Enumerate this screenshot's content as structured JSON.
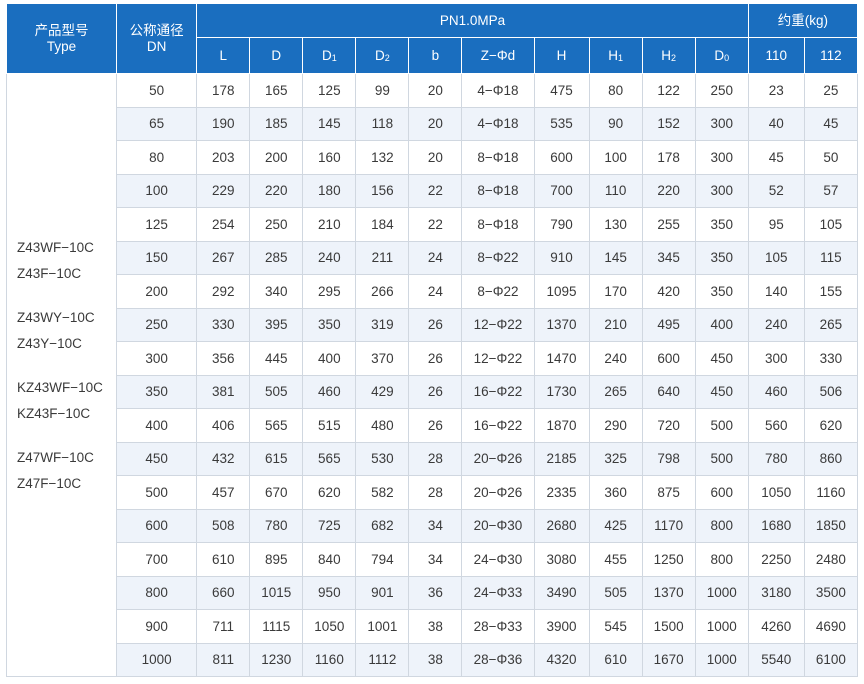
{
  "header": {
    "type_label_cn": "产品型号",
    "type_label_en": "Type",
    "dn_label_cn": "公称通径",
    "dn_label_en": "DN",
    "pressure_label": "PN1.0MPa",
    "weight_label": "约重(kg)",
    "dims": [
      {
        "main": "L",
        "sub": ""
      },
      {
        "main": "D",
        "sub": ""
      },
      {
        "main": "D",
        "sub": "1"
      },
      {
        "main": "D",
        "sub": "2"
      },
      {
        "main": "b",
        "sub": ""
      },
      {
        "main": "Z−Φd",
        "sub": ""
      },
      {
        "main": "H",
        "sub": ""
      },
      {
        "main": "H",
        "sub": "1"
      },
      {
        "main": "H",
        "sub": "2"
      },
      {
        "main": "D",
        "sub": "0"
      }
    ],
    "weight_cols": [
      "110",
      "112"
    ]
  },
  "types": [
    [
      "Z43WF−10C",
      "Z43F−10C"
    ],
    [
      "Z43WY−10C",
      "Z43Y−10C"
    ],
    [
      "KZ43WF−10C",
      "KZ43F−10C"
    ],
    [
      "Z47WF−10C",
      "Z47F−10C"
    ]
  ],
  "rows": [
    [
      "50",
      "178",
      "165",
      "125",
      "99",
      "20",
      "4−Φ18",
      "475",
      "80",
      "122",
      "250",
      "23",
      "25"
    ],
    [
      "65",
      "190",
      "185",
      "145",
      "118",
      "20",
      "4−Φ18",
      "535",
      "90",
      "152",
      "300",
      "40",
      "45"
    ],
    [
      "80",
      "203",
      "200",
      "160",
      "132",
      "20",
      "8−Φ18",
      "600",
      "100",
      "178",
      "300",
      "45",
      "50"
    ],
    [
      "100",
      "229",
      "220",
      "180",
      "156",
      "22",
      "8−Φ18",
      "700",
      "110",
      "220",
      "300",
      "52",
      "57"
    ],
    [
      "125",
      "254",
      "250",
      "210",
      "184",
      "22",
      "8−Φ18",
      "790",
      "130",
      "255",
      "350",
      "95",
      "105"
    ],
    [
      "150",
      "267",
      "285",
      "240",
      "211",
      "24",
      "8−Φ22",
      "910",
      "145",
      "345",
      "350",
      "105",
      "115"
    ],
    [
      "200",
      "292",
      "340",
      "295",
      "266",
      "24",
      "8−Φ22",
      "1095",
      "170",
      "420",
      "350",
      "140",
      "155"
    ],
    [
      "250",
      "330",
      "395",
      "350",
      "319",
      "26",
      "12−Φ22",
      "1370",
      "210",
      "495",
      "400",
      "240",
      "265"
    ],
    [
      "300",
      "356",
      "445",
      "400",
      "370",
      "26",
      "12−Φ22",
      "1470",
      "240",
      "600",
      "450",
      "300",
      "330"
    ],
    [
      "350",
      "381",
      "505",
      "460",
      "429",
      "26",
      "16−Φ22",
      "1730",
      "265",
      "640",
      "450",
      "460",
      "506"
    ],
    [
      "400",
      "406",
      "565",
      "515",
      "480",
      "26",
      "16−Φ22",
      "1870",
      "290",
      "720",
      "500",
      "560",
      "620"
    ],
    [
      "450",
      "432",
      "615",
      "565",
      "530",
      "28",
      "20−Φ26",
      "2185",
      "325",
      "798",
      "500",
      "780",
      "860"
    ],
    [
      "500",
      "457",
      "670",
      "620",
      "582",
      "28",
      "20−Φ26",
      "2335",
      "360",
      "875",
      "600",
      "1050",
      "1160"
    ],
    [
      "600",
      "508",
      "780",
      "725",
      "682",
      "34",
      "20−Φ30",
      "2680",
      "425",
      "1170",
      "800",
      "1680",
      "1850"
    ],
    [
      "700",
      "610",
      "895",
      "840",
      "794",
      "34",
      "24−Φ30",
      "3080",
      "455",
      "1250",
      "800",
      "2250",
      "2480"
    ],
    [
      "800",
      "660",
      "1015",
      "950",
      "901",
      "36",
      "24−Φ33",
      "3490",
      "505",
      "1370",
      "1000",
      "3180",
      "3500"
    ],
    [
      "900",
      "711",
      "1115",
      "1050",
      "1001",
      "38",
      "28−Φ33",
      "3900",
      "545",
      "1500",
      "1000",
      "4260",
      "4690"
    ],
    [
      "1000",
      "811",
      "1230",
      "1160",
      "1112",
      "38",
      "28−Φ36",
      "4320",
      "610",
      "1670",
      "1000",
      "5540",
      "6100"
    ]
  ]
}
